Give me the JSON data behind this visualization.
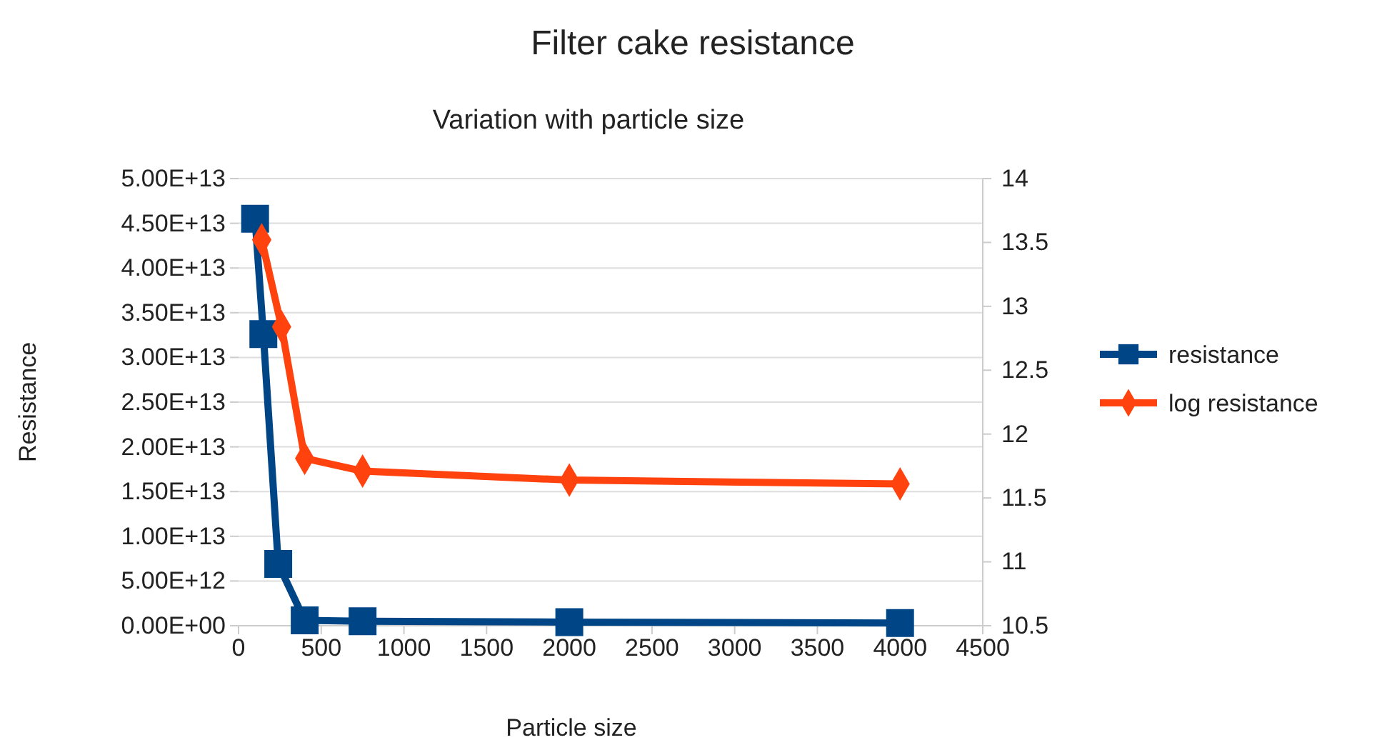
{
  "chart_data": {
    "type": "line",
    "title": "Filter cake resistance",
    "subtitle": "Variation with particle size",
    "xlabel": "Particle size",
    "ylabel": "Resistance",
    "xlim": [
      0,
      4500
    ],
    "xticks": [
      0,
      500,
      1000,
      1500,
      2000,
      2500,
      3000,
      3500,
      4000,
      4500
    ],
    "ylim": [
      0,
      50000000000000.0
    ],
    "yticks": [
      {
        "value": 0,
        "label": "0.00E+00"
      },
      {
        "value": 5000000000000.0,
        "label": "5.00E+12"
      },
      {
        "value": 10000000000000.0,
        "label": "1.00E+13"
      },
      {
        "value": 15000000000000.0,
        "label": "1.50E+13"
      },
      {
        "value": 20000000000000.0,
        "label": "2.00E+13"
      },
      {
        "value": 25000000000000.0,
        "label": "2.50E+13"
      },
      {
        "value": 30000000000000.0,
        "label": "3.00E+13"
      },
      {
        "value": 35000000000000.0,
        "label": "3.50E+13"
      },
      {
        "value": 40000000000000.0,
        "label": "4.00E+13"
      },
      {
        "value": 45000000000000.0,
        "label": "4.50E+13"
      },
      {
        "value": 50000000000000.0,
        "label": "5.00E+13"
      }
    ],
    "y2lim": [
      10.5,
      14
    ],
    "y2ticks": [
      10.5,
      11,
      11.5,
      12,
      12.5,
      13,
      13.5,
      14
    ],
    "grid": "y",
    "legend": "right",
    "series": [
      {
        "name": "resistance",
        "color": "#004586",
        "marker": "square",
        "x": [
          100,
          150,
          240,
          400,
          750,
          2000,
          4000
        ],
        "values": [
          45500000000000.0,
          32600000000000.0,
          6900000000000.0,
          600000000000.0,
          500000000000.0,
          400000000000.0,
          300000000000.0
        ]
      },
      {
        "name": "log resistance",
        "color": "#ff420e",
        "marker": "diamond",
        "axis": "y2",
        "x": [
          140,
          260,
          400,
          750,
          2000,
          4000
        ],
        "values": [
          13.52,
          12.84,
          11.81,
          11.71,
          11.64,
          11.61
        ]
      }
    ]
  }
}
